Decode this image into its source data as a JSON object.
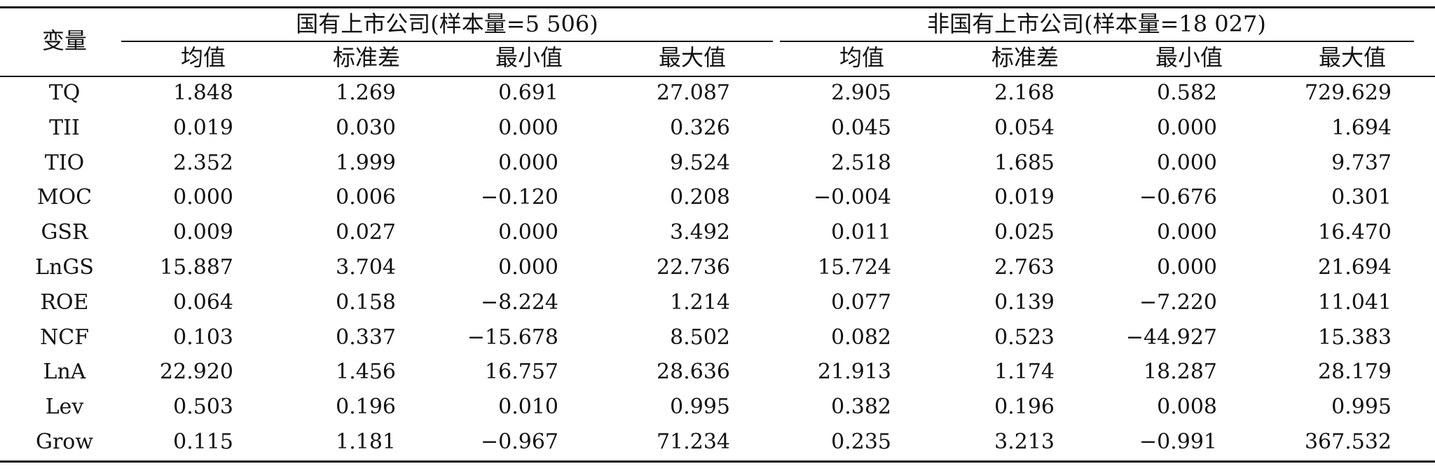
{
  "table": {
    "var_header": "变量",
    "groups": [
      {
        "label": "国有上市公司(样本量=5 506)"
      },
      {
        "label": "非国有上市公司(样本量=18 027)"
      }
    ],
    "columns": [
      "均值",
      "标准差",
      "最小值",
      "最大值",
      "均值",
      "标准差",
      "最小值",
      "最大值"
    ],
    "rows": [
      {
        "name": "TQ",
        "values": [
          "1.848",
          "1.269",
          "0.691",
          "27.087",
          "2.905",
          "2.168",
          "0.582",
          "729.629"
        ]
      },
      {
        "name": "TII",
        "values": [
          "0.019",
          "0.030",
          "0.000",
          "0.326",
          "0.045",
          "0.054",
          "0.000",
          "1.694"
        ]
      },
      {
        "name": "TIO",
        "values": [
          "2.352",
          "1.999",
          "0.000",
          "9.524",
          "2.518",
          "1.685",
          "0.000",
          "9.737"
        ]
      },
      {
        "name": "MOC",
        "values": [
          "0.000",
          "0.006",
          "−0.120",
          "0.208",
          "−0.004",
          "0.019",
          "−0.676",
          "0.301"
        ]
      },
      {
        "name": "GSR",
        "values": [
          "0.009",
          "0.027",
          "0.000",
          "3.492",
          "0.011",
          "0.025",
          "0.000",
          "16.470"
        ]
      },
      {
        "name": "LnGS",
        "values": [
          "15.887",
          "3.704",
          "0.000",
          "22.736",
          "15.724",
          "2.763",
          "0.000",
          "21.694"
        ]
      },
      {
        "name": "ROE",
        "values": [
          "0.064",
          "0.158",
          "−8.224",
          "1.214",
          "0.077",
          "0.139",
          "−7.220",
          "11.041"
        ]
      },
      {
        "name": "NCF",
        "values": [
          "0.103",
          "0.337",
          "−15.678",
          "8.502",
          "0.082",
          "0.523",
          "−44.927",
          "15.383"
        ]
      },
      {
        "name": "LnA",
        "values": [
          "22.920",
          "1.456",
          "16.757",
          "28.636",
          "21.913",
          "1.174",
          "18.287",
          "28.179"
        ]
      },
      {
        "name": "Lev",
        "values": [
          "0.503",
          "0.196",
          "0.010",
          "0.995",
          "0.382",
          "0.196",
          "0.008",
          "0.995"
        ]
      },
      {
        "name": "Grow",
        "values": [
          "0.115",
          "1.181",
          "−0.967",
          "71.234",
          "0.235",
          "3.213",
          "−0.991",
          "367.532"
        ]
      }
    ]
  }
}
